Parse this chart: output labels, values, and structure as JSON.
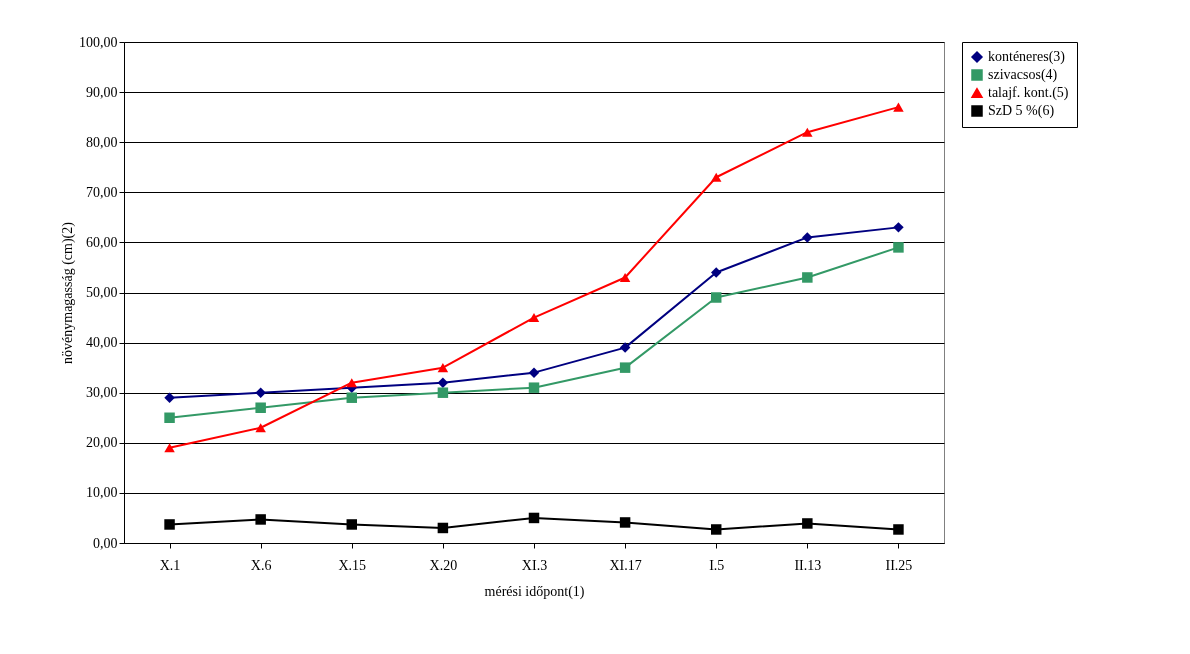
{
  "chart_data": {
    "type": "line",
    "xlabel": "mérési időpont(1)",
    "ylabel": "növénymagasság (cm)(2)",
    "categories": [
      "X.1",
      "X.6",
      "X.15",
      "X.20",
      "XI.3",
      "XI.17",
      "I.5",
      "II.13",
      "II.25"
    ],
    "series": [
      {
        "name": "konténeres(3)",
        "color": "#000080",
        "marker": "diamond",
        "values": [
          29,
          30,
          31,
          32,
          34,
          39,
          54,
          61,
          63
        ]
      },
      {
        "name": "szivacsos(4)",
        "color": "#339966",
        "marker": "square",
        "values": [
          25,
          27,
          29,
          30,
          31,
          35,
          49,
          53,
          59
        ]
      },
      {
        "name": "talajf. kont.(5)",
        "color": "#ff0000",
        "marker": "triangle",
        "values": [
          19,
          23,
          32,
          35,
          45,
          53,
          73,
          82,
          87
        ]
      },
      {
        "name": "SzD 5 %(6)",
        "color": "#000000",
        "marker": "square",
        "values": [
          3.7,
          4.7,
          3.7,
          3.0,
          5.0,
          4.1,
          2.7,
          3.9,
          2.7
        ]
      }
    ],
    "ylim": [
      0,
      100
    ],
    "yticks": [
      {
        "value": 0,
        "label": "0,00"
      },
      {
        "value": 10,
        "label": "10,00"
      },
      {
        "value": 20,
        "label": "20,00"
      },
      {
        "value": 30,
        "label": "30,00"
      },
      {
        "value": 40,
        "label": "40,00"
      },
      {
        "value": 50,
        "label": "50,00"
      },
      {
        "value": 60,
        "label": "60,00"
      },
      {
        "value": 70,
        "label": "70,00"
      },
      {
        "value": 80,
        "label": "80,00"
      },
      {
        "value": 90,
        "label": "90,00"
      },
      {
        "value": 100,
        "label": "100,00"
      }
    ],
    "grid": "y",
    "legend": "right",
    "line_style": "solid"
  }
}
